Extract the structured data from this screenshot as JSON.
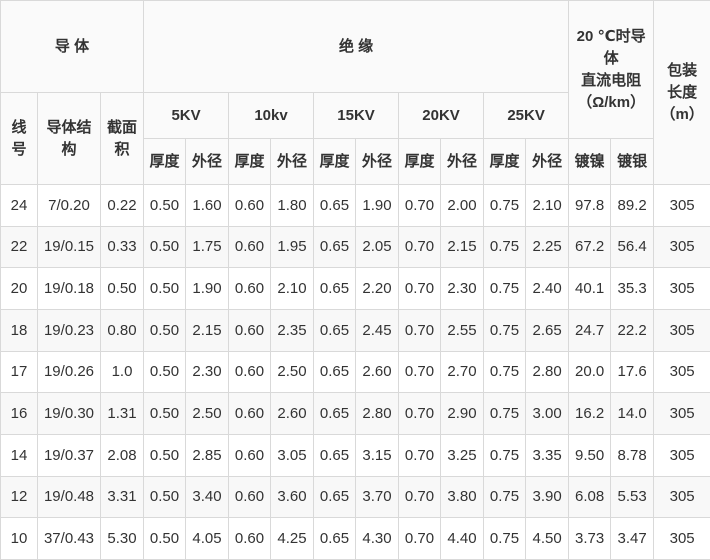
{
  "table": {
    "header": {
      "conductor_group": "导 体",
      "insulation_group": "绝 缘",
      "resistance_lines": [
        "20 ℃时导",
        "体",
        "直流电阻",
        "（Ω/km）"
      ],
      "packing_lines": [
        "包装",
        "长度",
        "（m）"
      ],
      "wire_no_lines": [
        "线",
        "号"
      ],
      "structure_lines": [
        "导体结",
        "构"
      ],
      "area_lines": [
        "截面",
        "积"
      ],
      "kv_levels": [
        "5KV",
        "10kv",
        "15KV",
        "20KV",
        "25KV"
      ],
      "thickness_label": "厚度",
      "od_label": "外径",
      "nickel_label": "镀镍",
      "silver_label": "镀银"
    },
    "rows": [
      {
        "wire_no": "24",
        "structure": "7/0.20",
        "area": "0.22",
        "insulation": [
          "0.50",
          "1.60",
          "0.60",
          "1.80",
          "0.65",
          "1.90",
          "0.70",
          "2.00",
          "0.75",
          "2.10"
        ],
        "nickel": "97.8",
        "silver": "89.2",
        "length": "305"
      },
      {
        "wire_no": "22",
        "structure": "19/0.15",
        "area": "0.33",
        "insulation": [
          "0.50",
          "1.75",
          "0.60",
          "1.95",
          "0.65",
          "2.05",
          "0.70",
          "2.15",
          "0.75",
          "2.25"
        ],
        "nickel": "67.2",
        "silver": "56.4",
        "length": "305"
      },
      {
        "wire_no": "20",
        "structure": "19/0.18",
        "area": "0.50",
        "insulation": [
          "0.50",
          "1.90",
          "0.60",
          "2.10",
          "0.65",
          "2.20",
          "0.70",
          "2.30",
          "0.75",
          "2.40"
        ],
        "nickel": "40.1",
        "silver": "35.3",
        "length": "305"
      },
      {
        "wire_no": "18",
        "structure": "19/0.23",
        "area": "0.80",
        "insulation": [
          "0.50",
          "2.15",
          "0.60",
          "2.35",
          "0.65",
          "2.45",
          "0.70",
          "2.55",
          "0.75",
          "2.65"
        ],
        "nickel": "24.7",
        "silver": "22.2",
        "length": "305"
      },
      {
        "wire_no": "17",
        "structure": "19/0.26",
        "area": "1.0",
        "insulation": [
          "0.50",
          "2.30",
          "0.60",
          "2.50",
          "0.65",
          "2.60",
          "0.70",
          "2.70",
          "0.75",
          "2.80"
        ],
        "nickel": "20.0",
        "silver": "17.6",
        "length": "305"
      },
      {
        "wire_no": "16",
        "structure": "19/0.30",
        "area": "1.31",
        "insulation": [
          "0.50",
          "2.50",
          "0.60",
          "2.60",
          "0.65",
          "2.80",
          "0.70",
          "2.90",
          "0.75",
          "3.00"
        ],
        "nickel": "16.2",
        "silver": "14.0",
        "length": "305"
      },
      {
        "wire_no": "14",
        "structure": "19/0.37",
        "area": "2.08",
        "insulation": [
          "0.50",
          "2.85",
          "0.60",
          "3.05",
          "0.65",
          "3.15",
          "0.70",
          "3.25",
          "0.75",
          "3.35"
        ],
        "nickel": "9.50",
        "silver": "8.78",
        "length": "305"
      },
      {
        "wire_no": "12",
        "structure": "19/0.48",
        "area": "3.31",
        "insulation": [
          "0.50",
          "3.40",
          "0.60",
          "3.60",
          "0.65",
          "3.70",
          "0.70",
          "3.80",
          "0.75",
          "3.90"
        ],
        "nickel": "6.08",
        "silver": "5.53",
        "length": "305"
      },
      {
        "wire_no": "10",
        "structure": "37/0.43",
        "area": "5.30",
        "insulation": [
          "0.50",
          "4.05",
          "0.60",
          "4.25",
          "0.65",
          "4.30",
          "0.70",
          "4.40",
          "0.75",
          "4.50"
        ],
        "nickel": "3.73",
        "silver": "3.47",
        "length": "305"
      }
    ],
    "colors": {
      "border": "#d9d9d9",
      "header_bg": "#fafafa",
      "zebra_bg": "#f8f8f8",
      "text": "#333333"
    }
  }
}
